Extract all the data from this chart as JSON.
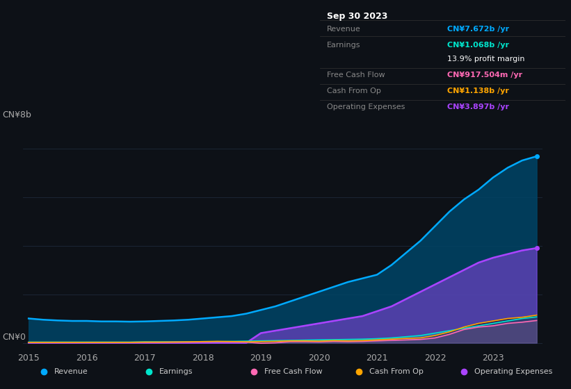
{
  "background_color": "#0d1117",
  "plot_bg_color": "#0d1117",
  "title_box": {
    "date": "Sep 30 2023",
    "rows": [
      {
        "label": "Revenue",
        "value": "CN¥7.672b /yr",
        "value_color": "#00aaff"
      },
      {
        "label": "Earnings",
        "value": "CN¥1.068b /yr",
        "value_color": "#00e5cc"
      },
      {
        "label": "",
        "value": "13.9% profit margin",
        "value_color": "#ffffff"
      },
      {
        "label": "Free Cash Flow",
        "value": "CN¥917.504m /yr",
        "value_color": "#ff69b4"
      },
      {
        "label": "Cash From Op",
        "value": "CN¥1.138b /yr",
        "value_color": "#ffa500"
      },
      {
        "label": "Operating Expenses",
        "value": "CN¥3.897b /yr",
        "value_color": "#aa44ff"
      }
    ]
  },
  "ylabel": "CN¥8b",
  "y0label": "CN¥0",
  "years": [
    2015,
    2015.25,
    2015.5,
    2015.75,
    2016,
    2016.25,
    2016.5,
    2016.75,
    2017,
    2017.25,
    2017.5,
    2017.75,
    2018,
    2018.25,
    2018.5,
    2018.75,
    2019,
    2019.25,
    2019.5,
    2019.75,
    2020,
    2020.25,
    2020.5,
    2020.75,
    2021,
    2021.25,
    2021.5,
    2021.75,
    2022,
    2022.25,
    2022.5,
    2022.75,
    2023,
    2023.25,
    2023.5,
    2023.75
  ],
  "revenue": [
    1.0,
    0.95,
    0.92,
    0.9,
    0.9,
    0.88,
    0.88,
    0.87,
    0.88,
    0.9,
    0.92,
    0.95,
    1.0,
    1.05,
    1.1,
    1.2,
    1.35,
    1.5,
    1.7,
    1.9,
    2.1,
    2.3,
    2.5,
    2.65,
    2.8,
    3.2,
    3.7,
    4.2,
    4.8,
    5.4,
    5.9,
    6.3,
    6.8,
    7.2,
    7.5,
    7.672
  ],
  "earnings": [
    0.03,
    0.03,
    0.03,
    0.03,
    0.03,
    0.03,
    0.03,
    0.03,
    0.04,
    0.04,
    0.04,
    0.04,
    0.05,
    0.05,
    0.06,
    0.07,
    0.08,
    0.09,
    0.1,
    0.11,
    0.12,
    0.13,
    0.14,
    0.15,
    0.17,
    0.2,
    0.25,
    0.3,
    0.4,
    0.5,
    0.6,
    0.7,
    0.8,
    0.9,
    1.0,
    1.068
  ],
  "free_cash_flow": [
    0.01,
    0.01,
    0.01,
    0.01,
    0.02,
    0.02,
    0.02,
    0.02,
    0.02,
    0.02,
    0.03,
    0.03,
    0.04,
    0.05,
    0.04,
    0.03,
    -0.02,
    0.0,
    0.05,
    0.05,
    0.04,
    0.06,
    0.05,
    0.06,
    0.08,
    0.1,
    0.12,
    0.14,
    0.2,
    0.35,
    0.55,
    0.65,
    0.7,
    0.8,
    0.85,
    0.918
  ],
  "cash_from_op": [
    0.02,
    0.02,
    0.02,
    0.02,
    0.02,
    0.02,
    0.02,
    0.02,
    0.03,
    0.03,
    0.03,
    0.04,
    0.05,
    0.06,
    0.05,
    0.04,
    0.05,
    0.06,
    0.08,
    0.08,
    0.07,
    0.09,
    0.08,
    0.09,
    0.12,
    0.15,
    0.18,
    0.2,
    0.3,
    0.45,
    0.65,
    0.8,
    0.9,
    1.0,
    1.05,
    1.138
  ],
  "operating_expenses": [
    0.0,
    0.0,
    0.0,
    0.0,
    0.0,
    0.0,
    0.0,
    0.0,
    0.0,
    0.0,
    0.0,
    0.0,
    0.0,
    0.0,
    0.0,
    0.0,
    0.4,
    0.5,
    0.6,
    0.7,
    0.8,
    0.9,
    1.0,
    1.1,
    1.3,
    1.5,
    1.8,
    2.1,
    2.4,
    2.7,
    3.0,
    3.3,
    3.5,
    3.65,
    3.8,
    3.897
  ],
  "revenue_color": "#00aaff",
  "revenue_fill": "#00557799",
  "earnings_color": "#00e5cc",
  "earnings_fill": "#00e5cc33",
  "free_cash_flow_color": "#ff69b4",
  "free_cash_flow_fill": "#ff69b433",
  "cash_from_op_color": "#ffa500",
  "cash_from_op_fill": "#ffa50033",
  "operating_expenses_color": "#aa44ff",
  "operating_expenses_fill": "#aa44ff55",
  "grid_color": "#1e2a3a",
  "text_color": "#aaaaaa",
  "legend_bg": "#1a1a2e",
  "yticks": [
    0,
    2,
    4,
    6,
    8
  ],
  "xticks": [
    2015,
    2016,
    2017,
    2018,
    2019,
    2020,
    2021,
    2022,
    2023
  ],
  "ymax": 8.5,
  "legend_items": [
    {
      "label": "Revenue",
      "color": "#00aaff"
    },
    {
      "label": "Earnings",
      "color": "#00e5cc"
    },
    {
      "label": "Free Cash Flow",
      "color": "#ff69b4"
    },
    {
      "label": "Cash From Op",
      "color": "#ffa500"
    },
    {
      "label": "Operating Expenses",
      "color": "#aa44ff"
    }
  ]
}
